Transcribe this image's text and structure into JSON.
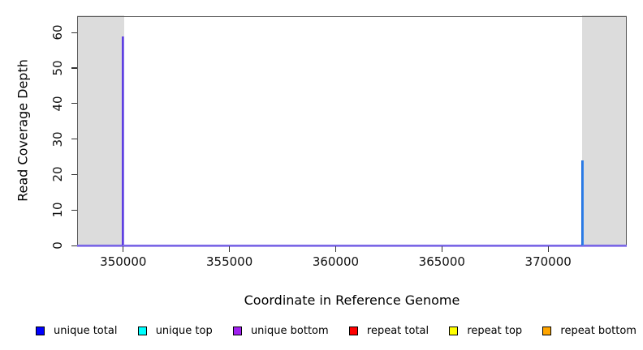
{
  "figure": {
    "background": "#ffffff",
    "xlabel": "Coordinate in Reference Genome",
    "ylabel": "Read Coverage Depth"
  },
  "chart_data": {
    "type": "line",
    "subtype": "vertical-coverage-spikes",
    "title": "",
    "xlabel": "Coordinate in Reference Genome",
    "ylabel": "Read Coverage Depth",
    "xlim": [
      347830,
      373700
    ],
    "ylim": [
      0,
      64.6
    ],
    "x_ticks": [
      350000,
      355000,
      360000,
      365000,
      370000
    ],
    "y_ticks": [
      0,
      10,
      20,
      30,
      40,
      50,
      60
    ],
    "grid": false,
    "legend_position": "bottom",
    "series": [
      {
        "name": "unique total",
        "color": "#0000FF"
      },
      {
        "name": "unique top",
        "color": "#00FFFF"
      },
      {
        "name": "unique bottom",
        "color": "#A020F0"
      },
      {
        "name": "repeat total",
        "color": "#FF0000"
      },
      {
        "name": "repeat top",
        "color": "#FFFF00"
      },
      {
        "name": "repeat bottom",
        "color": "#FFA500"
      }
    ],
    "spikes": [
      {
        "x": 350000,
        "y": 59,
        "series": [
          "unique total",
          "unique bottom"
        ],
        "rendered_color_left": "#4A28DE",
        "rendered_color_right": "#8D77EA"
      },
      {
        "x": 371600,
        "y": 24,
        "series": [
          "unique total",
          "unique top"
        ],
        "rendered_color_left": "#1565D8",
        "rendered_color_right": "#3F8EF0"
      }
    ],
    "baseline": {
      "y": 0,
      "color_top": "#5A48E0",
      "color_bottom": "#B7A4F0"
    },
    "shaded_regions": [
      {
        "x0": 347830,
        "x1": 350050,
        "color": "#DCDCDC"
      },
      {
        "x0": 371600,
        "x1": 373700,
        "color": "#DCDCDC"
      }
    ]
  }
}
